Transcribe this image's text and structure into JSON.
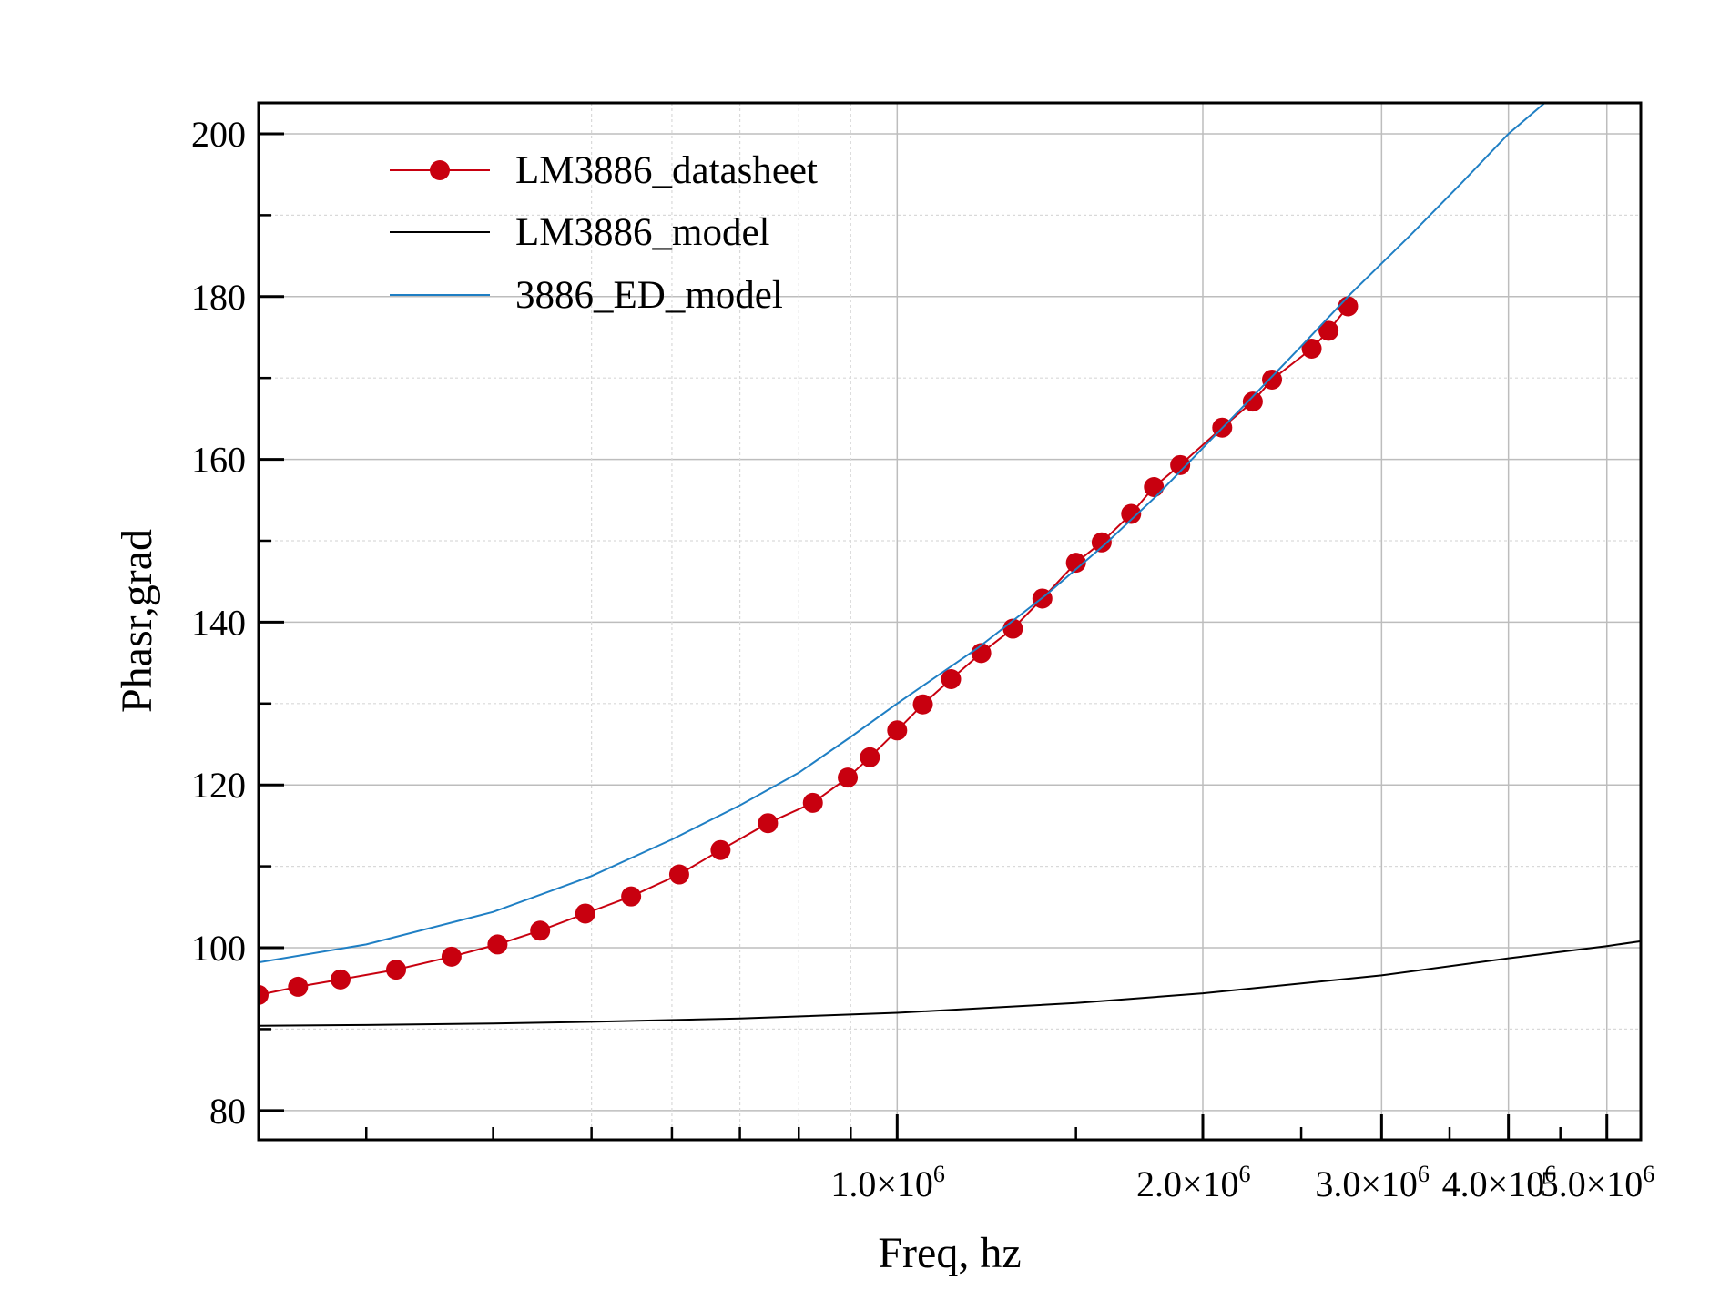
{
  "chart_data": {
    "type": "line",
    "title": "",
    "xlabel": "Freq, hz",
    "ylabel": "Phasr,grad",
    "x_scale": "log",
    "xlim": [
      235000,
      5400000
    ],
    "ylim": [
      76.4,
      203.8
    ],
    "grid": true,
    "legend_position": "top-left",
    "x_ticks": [
      {
        "value": 1000000,
        "mantissa": "1.0×10",
        "exp": "6"
      },
      {
        "value": 2000000,
        "mantissa": "2.0×10",
        "exp": "6"
      },
      {
        "value": 3000000,
        "mantissa": "3.0×10",
        "exp": "6"
      },
      {
        "value": 4000000,
        "mantissa": "4.0×10",
        "exp": "6"
      },
      {
        "value": 5000000,
        "mantissa": "5.0×10",
        "exp": "6"
      }
    ],
    "x_minor_grid": [
      500000,
      600000,
      700000,
      800000,
      900000
    ],
    "y_ticks": [
      {
        "value": 80,
        "label": "80"
      },
      {
        "value": 100,
        "label": "100"
      },
      {
        "value": 120,
        "label": "120"
      },
      {
        "value": 140,
        "label": "140"
      },
      {
        "value": 160,
        "label": "160"
      },
      {
        "value": 180,
        "label": "180"
      },
      {
        "value": 200,
        "label": "200"
      }
    ],
    "series": [
      {
        "name": "LM3886_datasheet",
        "color": "#c8000f",
        "marker": "circle",
        "x": [
          235000,
          257000,
          283000,
          321000,
          364000,
          404000,
          445000,
          493000,
          547000,
          610000,
          670000,
          746000,
          826000,
          894000,
          940000,
          1000000,
          1060000,
          1130000,
          1210000,
          1300000,
          1390000,
          1500000,
          1590000,
          1700000,
          1790000,
          1900000,
          2090000,
          2240000,
          2340000,
          2560000,
          2660000,
          2780000
        ],
        "y": [
          94.2,
          95.2,
          96.1,
          97.3,
          98.9,
          100.4,
          102.1,
          104.2,
          106.3,
          109.0,
          112.0,
          115.3,
          117.8,
          120.9,
          123.4,
          126.7,
          129.9,
          133.0,
          136.2,
          139.2,
          142.9,
          147.3,
          149.8,
          153.3,
          156.6,
          159.3,
          163.9,
          167.1,
          169.8,
          173.6,
          175.8,
          178.8
        ]
      },
      {
        "name": "LM3886_model",
        "color": "#000000",
        "marker": "none",
        "x": [
          235000,
          300000,
          400000,
          500000,
          700000,
          1000000,
          1500000,
          2000000,
          3000000,
          4000000,
          5000000,
          5400000
        ],
        "y": [
          90.4,
          90.5,
          90.7,
          90.9,
          91.3,
          92.0,
          93.2,
          94.4,
          96.6,
          98.7,
          100.2,
          100.8
        ]
      },
      {
        "name": "3886_ED_model",
        "color": "#1f7fc4",
        "marker": "none",
        "x": [
          235000,
          300000,
          400000,
          500000,
          600000,
          700000,
          800000,
          900000,
          1000000,
          1200000,
          1400000,
          1600000,
          1800000,
          2000000,
          2200000,
          2500000,
          2800000,
          3200000,
          3600000,
          4000000,
          4400000
        ],
        "y": [
          98.2,
          100.4,
          104.4,
          108.8,
          113.3,
          117.5,
          121.5,
          125.9,
          130.0,
          136.8,
          143.3,
          149.5,
          155.5,
          161.4,
          166.7,
          173.9,
          180.4,
          187.5,
          194.0,
          200.0,
          204.4
        ]
      }
    ]
  }
}
